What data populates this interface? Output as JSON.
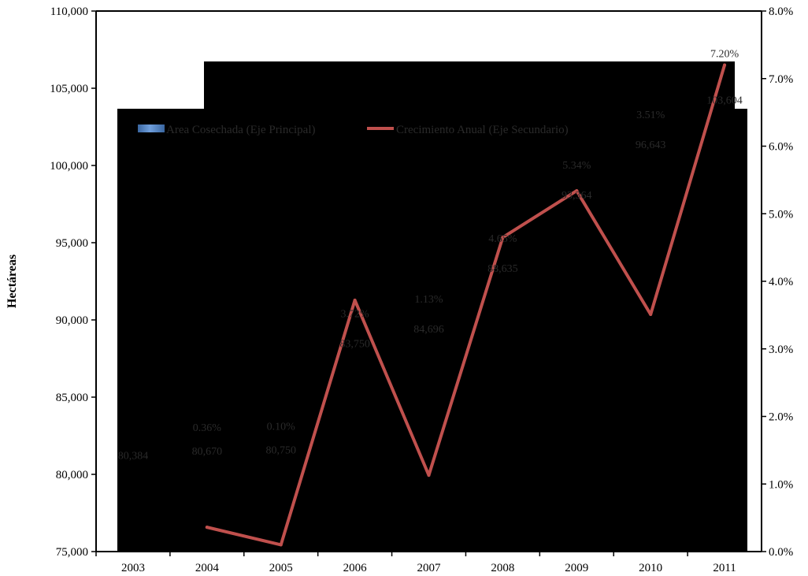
{
  "chart_data": {
    "type": "bar",
    "categories": [
      "2003",
      "2004",
      "2005",
      "2006",
      "2007",
      "2008",
      "2009",
      "2010",
      "2011"
    ],
    "series": [
      {
        "name": "Area Cosechada (Eje Principal)",
        "type": "bar",
        "axis": "primary",
        "values": [
          80384,
          80670,
          80750,
          83750,
          84696,
          88635,
          93364,
          96643,
          103604
        ],
        "labels": [
          "80,384",
          "80,670",
          "80,750",
          "83,750",
          "84,696",
          "88,635",
          "93,364",
          "96,643",
          "103,604"
        ],
        "color": "#4f81bd"
      },
      {
        "name": "Crecimiento Anual (Eje Secundario)",
        "type": "line",
        "axis": "secondary",
        "x": [
          "2004",
          "2005",
          "2006",
          "2007",
          "2008",
          "2009",
          "2010",
          "2011"
        ],
        "values": [
          0.36,
          0.1,
          3.72,
          1.13,
          4.65,
          5.34,
          3.51,
          7.2
        ],
        "labels": [
          "0.36%",
          "0.10%",
          "3.72%",
          "1.13%",
          "4.65%",
          "5.34%",
          "3.51%",
          "7.20%"
        ],
        "color": "#c0504d"
      }
    ],
    "ylabel": "Hectáreas",
    "ylim": [
      75000,
      110000
    ],
    "yticks": [
      "75,000",
      "80,000",
      "85,000",
      "90,000",
      "95,000",
      "100,000",
      "105,000",
      "110,000"
    ],
    "y2lim": [
      0,
      8
    ],
    "y2ticks": [
      "0.0%",
      "1.0%",
      "2.0%",
      "3.0%",
      "4.0%",
      "5.0%",
      "6.0%",
      "7.0%",
      "8.0%"
    ],
    "legend_position": "top-left",
    "grid": false,
    "plot_background": "#000000",
    "bar_color": "#4f81bd",
    "line_color": "#c0504d"
  }
}
